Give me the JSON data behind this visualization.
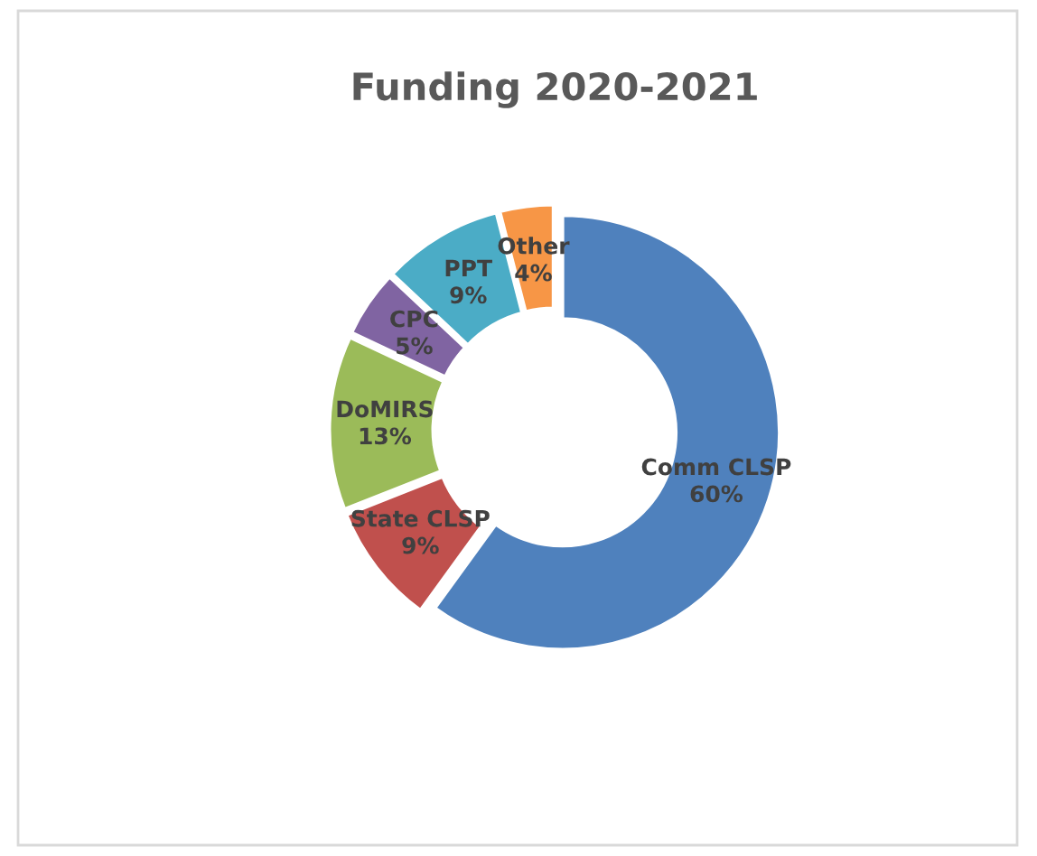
{
  "chart_data": {
    "type": "donut",
    "title": "Funding 2020-2021",
    "categories": [
      "Comm CLSP",
      "State CLSP",
      "DoMIRS",
      "CPC",
      "PPT",
      "Other"
    ],
    "values": [
      60,
      9,
      13,
      5,
      9,
      4
    ],
    "colors": [
      "#4f81bd",
      "#c0504d",
      "#9bbb59",
      "#8064a2",
      "#4bacc6",
      "#f79646"
    ],
    "value_labels": [
      "60%",
      "9%",
      "13%",
      "5%",
      "9%",
      "4%"
    ],
    "legend": false
  }
}
